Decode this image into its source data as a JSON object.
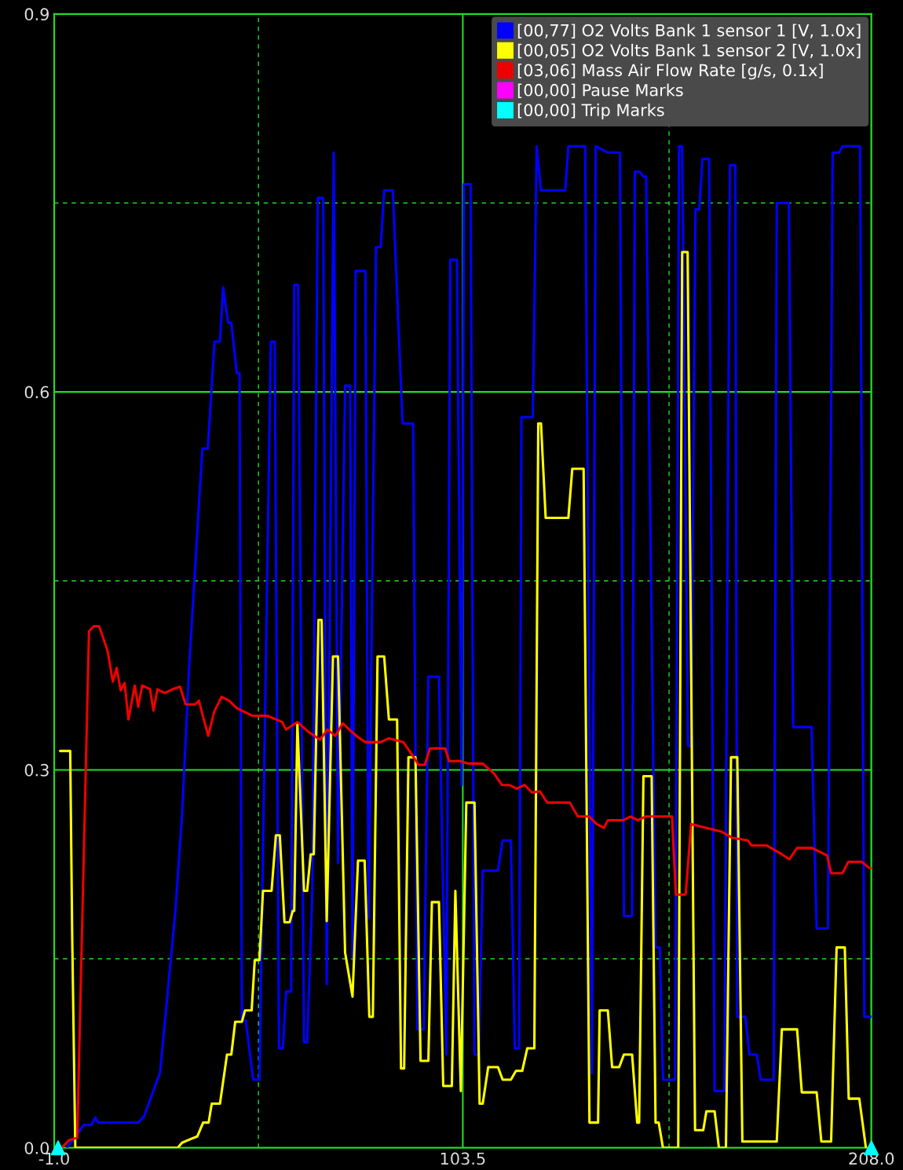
{
  "chart_data": {
    "type": "line",
    "xlim": [
      -1,
      208
    ],
    "xticks": [
      {
        "value": -1,
        "label": "-1.0"
      },
      {
        "value": 51.25,
        "label": null
      },
      {
        "value": 103.5,
        "label": "103.5"
      },
      {
        "value": 156.25,
        "label": null
      },
      {
        "value": 208,
        "label": "208.0"
      }
    ],
    "ylim": [
      0,
      0.9
    ],
    "yticks": [
      {
        "value": 0,
        "label": "0.0"
      },
      {
        "value": 0.15,
        "label": null
      },
      {
        "value": 0.3,
        "label": "0.3"
      },
      {
        "value": 0.45,
        "label": null
      },
      {
        "value": 0.6,
        "label": "0.6"
      },
      {
        "value": 0.75,
        "label": null
      },
      {
        "value": 0.9,
        "label": "0.9"
      }
    ],
    "grid": true,
    "legend": "top right",
    "series": [
      {
        "name": "[00,77] O2 Volts Bank 1 sensor 1 [V, 1.0x]",
        "color": "#0000ff",
        "x": [
          2.3,
          6.5,
          8.5,
          9.5,
          10.2,
          20.5,
          22.0,
          26.1,
          30.0,
          31.7,
          33.5,
          36.9,
          38.3,
          40.0,
          41.4,
          42.2,
          43.5,
          44.3,
          45.7,
          46.4,
          47.0,
          48.0,
          49.9,
          51.5,
          54.4,
          55.4,
          56.5,
          57.5,
          58.3,
          59.6,
          60.4,
          61.4,
          62.9,
          63.7,
          65.0,
          66.4,
          67.8,
          68.7,
          70.5,
          71.6,
          73.4,
          74.7,
          75.3,
          76.1,
          78.6,
          79.4,
          81.3,
          82.5,
          83.4,
          85.6,
          88.1,
          90.8,
          91.9,
          93.5,
          94.7,
          97.4,
          99.3,
          100.3,
          102.0,
          103.2,
          103.8,
          105.5,
          106.5,
          107.6,
          108.6,
          112.5,
          113.7,
          115.8,
          116.8,
          117.9,
          118.5,
          121.4,
          122.4,
          123.5,
          129.7,
          130.5,
          134.8,
          136.5,
          137.5,
          140.6,
          143.7,
          144.7,
          146.8,
          147.5,
          148.7,
          149.7,
          150.4,
          152.8,
          153.9,
          154.7,
          157.8,
          158.8,
          159.6,
          161.1,
          161.9,
          163.0,
          164.0,
          164.8,
          166.5,
          167.9,
          170.4,
          171.8,
          173.2,
          173.7,
          175.8,
          176.8,
          178.7,
          179.7,
          183.0,
          183.8,
          186.9,
          188.0,
          192.7,
          194.0,
          196.9,
          198.1,
          199.8,
          200.6,
          205.1,
          206.2,
          208.0
        ],
        "values": [
          0,
          0.018,
          0.018,
          0.024,
          0.02,
          0.02,
          0.025,
          0.06,
          0.188,
          0.264,
          0.381,
          0.555,
          0.555,
          0.64,
          0.64,
          0.683,
          0.655,
          0.655,
          0.615,
          0.615,
          0.101,
          0.101,
          0.054,
          0.054,
          0.64,
          0.64,
          0.079,
          0.079,
          0.124,
          0.124,
          0.685,
          0.685,
          0.084,
          0.084,
          0.2,
          0.754,
          0.754,
          0.13,
          0.79,
          0.226,
          0.605,
          0.605,
          0.151,
          0.696,
          0.696,
          0.182,
          0.715,
          0.715,
          0.76,
          0.76,
          0.575,
          0.575,
          0.094,
          0.094,
          0.374,
          0.374,
          0.074,
          0.705,
          0.705,
          0.288,
          0.765,
          0.765,
          0.074,
          0.074,
          0.22,
          0.22,
          0.244,
          0.244,
          0.079,
          0.079,
          0.58,
          0.58,
          0.795,
          0.76,
          0.76,
          0.795,
          0.795,
          0.059,
          0.795,
          0.79,
          0.79,
          0.184,
          0.184,
          0.775,
          0.775,
          0.771,
          0.771,
          0.159,
          0.159,
          0.054,
          0.054,
          0.795,
          0.795,
          0.319,
          0.319,
          0.745,
          0.745,
          0.785,
          0.785,
          0.045,
          0.045,
          0.78,
          0.78,
          0.104,
          0.104,
          0.074,
          0.074,
          0.054,
          0.054,
          0.75,
          0.75,
          0.334,
          0.334,
          0.174,
          0.174,
          0.79,
          0.79,
          0.795,
          0.795,
          0.104,
          0.104
        ]
      },
      {
        "name": "[00,05] O2 Volts Bank 1 sensor 2 [V, 1.0x]",
        "color": "#ffff00",
        "x": [
          0.5,
          3.1,
          3.6,
          4.4,
          30.6,
          31.7,
          34.0,
          35.6,
          37.1,
          38.5,
          39.3,
          41.4,
          43.2,
          44.3,
          45.3,
          47.0,
          47.8,
          49.5,
          50.3,
          51.5,
          52.4,
          54.6,
          55.7,
          56.7,
          57.9,
          59.2,
          60.0,
          60.4,
          61.2,
          62.9,
          63.7,
          64.6,
          65.4,
          66.6,
          67.4,
          68.7,
          70.3,
          71.6,
          73.4,
          75.3,
          76.7,
          78.4,
          79.6,
          80.5,
          81.7,
          83.4,
          84.6,
          86.7,
          87.7,
          88.5,
          89.6,
          91.4,
          92.7,
          94.7,
          95.6,
          97.4,
          98.5,
          100.7,
          101.6,
          103.0,
          104.4,
          106.5,
          107.8,
          108.6,
          110.0,
          112.5,
          113.7,
          115.8,
          117.1,
          118.7,
          120.0,
          121.8,
          122.8,
          123.5,
          124.7,
          130.5,
          131.5,
          134.4,
          135.9,
          138.1,
          138.5,
          140.6,
          141.7,
          143.5,
          144.7,
          146.8,
          148.1,
          148.6,
          149.7,
          151.8,
          152.8,
          153.6,
          154.7,
          158.6,
          159.6,
          161.0,
          162.9,
          165.0,
          165.8,
          167.9,
          169.0,
          170.8,
          172.1,
          173.7,
          175.0,
          183.8,
          185.1,
          189.0,
          190.2,
          194.0,
          195.2,
          197.7,
          199.1,
          201.2,
          202.2,
          204.9,
          206.6
        ],
        "values": [
          0.315,
          0.315,
          0.17,
          0,
          0,
          0.004,
          0.007,
          0.009,
          0.02,
          0.02,
          0.035,
          0.035,
          0.074,
          0.074,
          0.1,
          0.1,
          0.109,
          0.109,
          0.149,
          0.149,
          0.204,
          0.204,
          0.248,
          0.248,
          0.179,
          0.179,
          0.188,
          0.188,
          0.337,
          0.204,
          0.204,
          0.233,
          0.233,
          0.419,
          0.419,
          0.18,
          0.39,
          0.39,
          0.155,
          0.12,
          0.228,
          0.228,
          0.104,
          0.104,
          0.39,
          0.39,
          0.34,
          0.34,
          0.063,
          0.063,
          0.31,
          0.31,
          0.069,
          0.069,
          0.195,
          0.195,
          0.049,
          0.049,
          0.204,
          0.045,
          0.274,
          0.274,
          0.035,
          0.035,
          0.064,
          0.064,
          0.054,
          0.054,
          0.061,
          0.061,
          0.079,
          0.079,
          0.575,
          0.575,
          0.5,
          0.5,
          0.539,
          0.539,
          0.02,
          0.02,
          0.109,
          0.109,
          0.064,
          0.064,
          0.074,
          0.074,
          0.02,
          0.02,
          0.295,
          0.295,
          0.02,
          0.02,
          0,
          0,
          0.711,
          0.711,
          0.014,
          0.014,
          0.029,
          0.029,
          0,
          0,
          0.31,
          0.31,
          0.005,
          0.005,
          0.094,
          0.094,
          0.044,
          0.044,
          0.005,
          0.005,
          0.159,
          0.159,
          0.039,
          0.039,
          0
        ]
      },
      {
        "name": "[03,06] Mass Air Flow Rate [g/s, 0.1x]",
        "color": "#ee0000",
        "x": [
          0.9,
          2.8,
          4.9,
          7.9,
          9.1,
          10.5,
          12.7,
          14.0,
          15.0,
          16.0,
          17.0,
          18.0,
          19.6,
          20.5,
          21.5,
          23.5,
          24.4,
          25.4,
          27.3,
          29.3,
          31.2,
          32.6,
          35.1,
          36.0,
          37.0,
          38.4,
          39.9,
          41.8,
          43.7,
          45.7,
          47.7,
          49.6,
          53.4,
          57.3,
          58.3,
          61.2,
          64.1,
          67.0,
          68.9,
          70.9,
          72.8,
          74.8,
          76.7,
          78.6,
          82.5,
          84.5,
          88.3,
          90.3,
          92.2,
          93.8,
          95.1,
          99.0,
          100.0,
          102.8,
          104.8,
          108.6,
          111.5,
          113.5,
          115.4,
          117.3,
          119.3,
          121.2,
          123.2,
          125.1,
          130.9,
          132.9,
          135.8,
          137.7,
          139.6,
          140.6,
          144.5,
          146.4,
          148.3,
          150.2,
          157.0,
          158.0,
          160.5,
          161.9,
          165.7,
          169.6,
          172.5,
          176.4,
          177.3,
          181.2,
          185.1,
          187.0,
          189.0,
          192.8,
          196.7,
          197.7,
          200.6,
          202.1,
          205.5,
          207.5,
          208
        ],
        "values": [
          0,
          0.006,
          0.008,
          0.41,
          0.414,
          0.414,
          0.394,
          0.37,
          0.381,
          0.363,
          0.369,
          0.34,
          0.367,
          0.35,
          0.367,
          0.364,
          0.347,
          0.364,
          0.361,
          0.364,
          0.366,
          0.352,
          0.352,
          0.355,
          0.343,
          0.327,
          0.346,
          0.358,
          0.355,
          0.349,
          0.346,
          0.343,
          0.343,
          0.338,
          0.332,
          0.338,
          0.33,
          0.324,
          0.332,
          0.327,
          0.337,
          0.331,
          0.326,
          0.322,
          0.322,
          0.325,
          0.322,
          0.313,
          0.304,
          0.304,
          0.317,
          0.317,
          0.307,
          0.307,
          0.305,
          0.305,
          0.297,
          0.288,
          0.288,
          0.285,
          0.288,
          0.282,
          0.283,
          0.274,
          0.274,
          0.263,
          0.263,
          0.257,
          0.254,
          0.26,
          0.26,
          0.263,
          0.26,
          0.263,
          0.263,
          0.201,
          0.201,
          0.257,
          0.254,
          0.251,
          0.246,
          0.244,
          0.24,
          0.24,
          0.233,
          0.229,
          0.238,
          0.238,
          0.232,
          0.218,
          0.218,
          0.227,
          0.227,
          0.222,
          0.222
        ]
      },
      {
        "name": "[00,00] Pause Marks",
        "color": "#ff00ff",
        "type": "scatter"
      },
      {
        "name": "[00,00] Trip Marks",
        "color": "#00ffff",
        "type": "scatter",
        "marker": "triangle",
        "x": [
          0,
          208
        ],
        "values": [
          0,
          0
        ]
      }
    ]
  }
}
